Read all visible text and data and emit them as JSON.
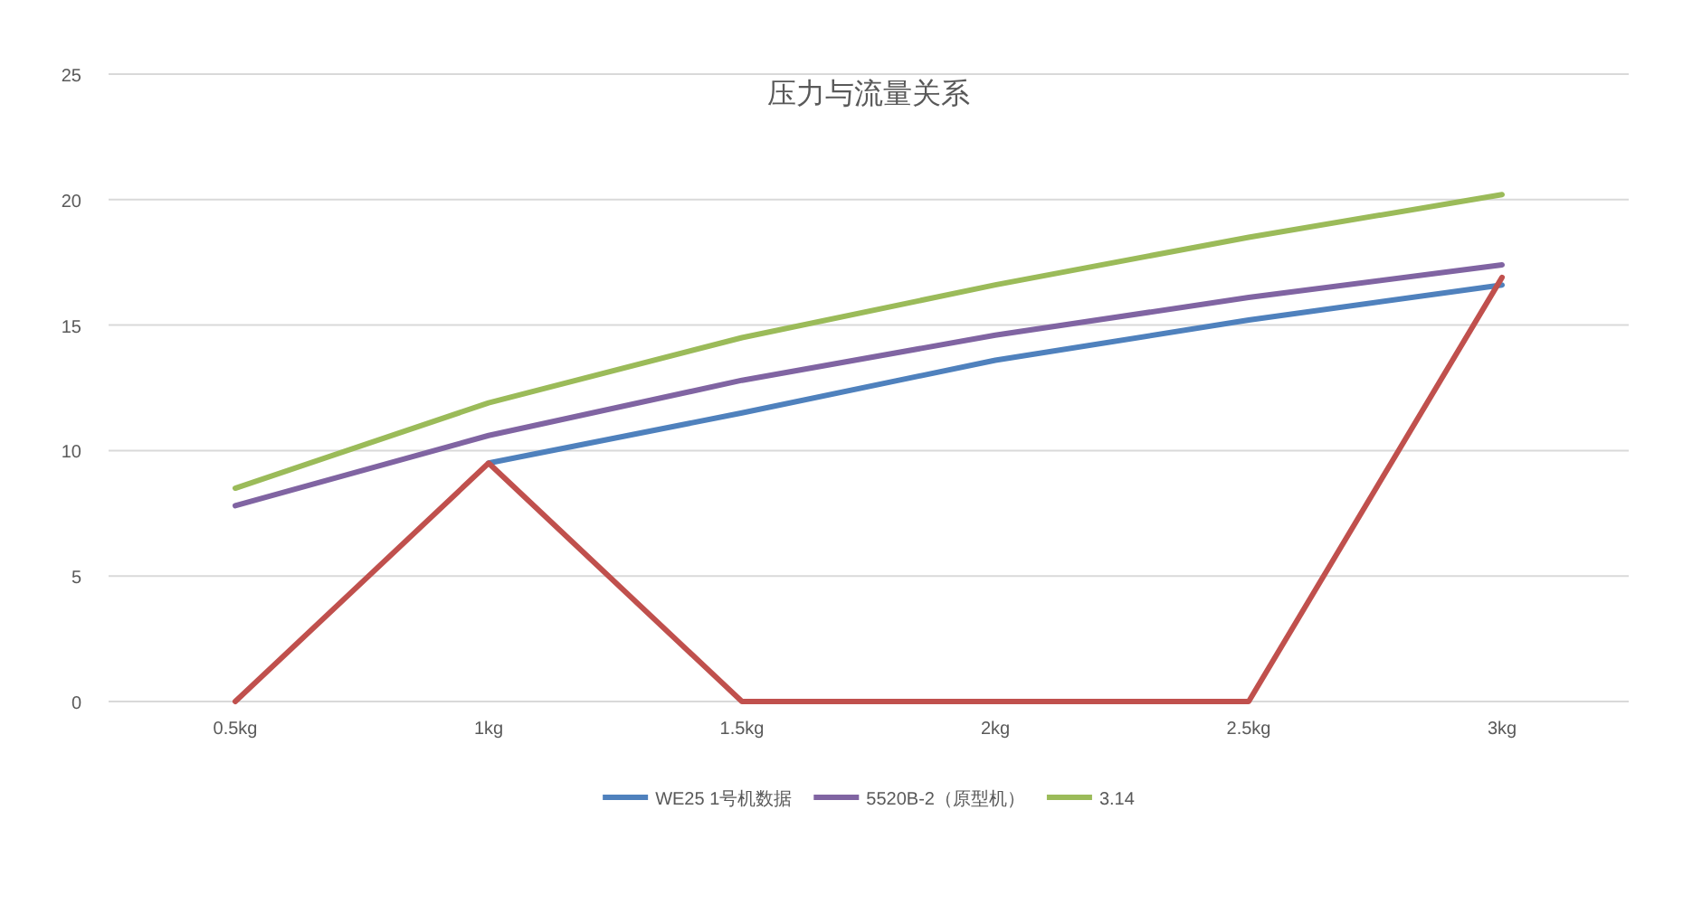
{
  "chart_data": {
    "type": "line",
    "title": "压力与流量关系",
    "categories": [
      "0.5kg",
      "1kg",
      "1.5kg",
      "2kg",
      "2.5kg",
      "3kg"
    ],
    "series": [
      {
        "name": "WE25 1号机数据",
        "color": "#4f81bd",
        "values": [
          null,
          9.5,
          11.5,
          13.6,
          15.2,
          16.6
        ]
      },
      {
        "name": "5520B-2（原型机）",
        "color": "#8064a2",
        "values": [
          7.8,
          10.6,
          12.8,
          14.6,
          16.1,
          17.4
        ]
      },
      {
        "name": "3.14",
        "color": "#9bbb59",
        "values": [
          8.5,
          11.9,
          14.5,
          16.6,
          18.5,
          20.2
        ]
      },
      {
        "color": "#c0504d",
        "values": [
          0,
          9.5,
          0,
          0,
          0,
          16.9
        ]
      }
    ],
    "ylim": [
      0,
      25
    ],
    "yticks": [
      0,
      5,
      10,
      15,
      20,
      25
    ],
    "grid": "y",
    "legend": "bottom",
    "marker": "none",
    "line_style": "solid"
  }
}
